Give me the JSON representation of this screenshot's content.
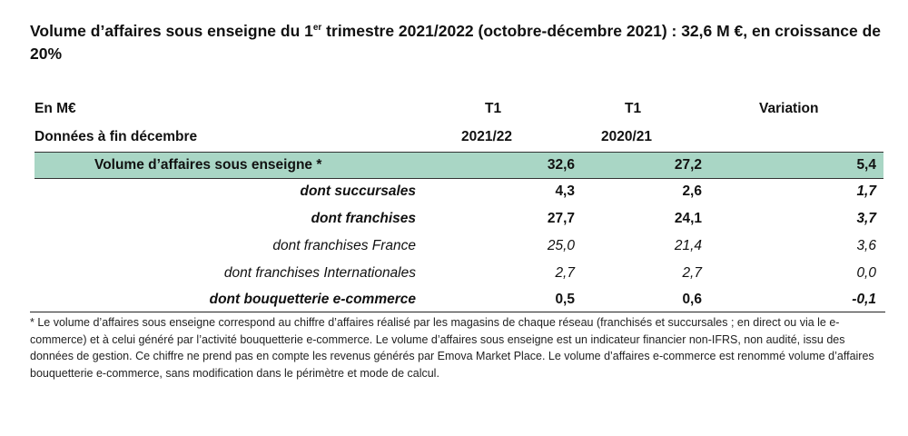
{
  "title": {
    "part1": "Volume d’affaires sous enseigne du 1",
    "sup": "er",
    "part2": " trimestre 2021/2022 (octobre-décembre 2021) : 32,6 M €, en croissance de 20%"
  },
  "table": {
    "unit_label": "En M€",
    "date_label": "Données à fin décembre",
    "col1_line1": "T1",
    "col1_line2": "2021/22",
    "col2_line1": "T1",
    "col2_line2": "2020/21",
    "col3": "Variation",
    "rows": [
      {
        "label": "Volume d’affaires sous enseigne *",
        "t1_2122": "32,6",
        "t1_2021": "27,2",
        "variation": "5,4"
      },
      {
        "label": "dont succursales",
        "t1_2122": "4,3",
        "t1_2021": "2,6",
        "variation": "1,7"
      },
      {
        "label": "dont franchises",
        "t1_2122": "27,7",
        "t1_2021": "24,1",
        "variation": "3,7"
      },
      {
        "label": "dont franchises France",
        "t1_2122": "25,0",
        "t1_2021": "21,4",
        "variation": "3,6"
      },
      {
        "label": "dont franchises Internationales",
        "t1_2122": "2,7",
        "t1_2021": "2,7",
        "variation": "0,0"
      },
      {
        "label": "dont bouquetterie e-commerce",
        "t1_2122": "0,5",
        "t1_2021": "0,6",
        "variation": "-0,1"
      }
    ]
  },
  "footnote": "* Le volume d’affaires sous enseigne correspond au chiffre d’affaires réalisé par les magasins de chaque réseau (franchisés et succursales ; en direct ou via le e-commerce) et à celui généré par l’activité bouquetterie e-commerce. Le volume d’affaires sous enseigne est un indicateur financier non-IFRS, non audité, issu des données de gestion. Ce chiffre ne prend pas en compte les revenus générés par Emova Market Place. Le volume d’affaires e-commerce est renommé volume d’affaires bouquetterie e-commerce, sans modification dans le périmètre et mode de calcul."
}
